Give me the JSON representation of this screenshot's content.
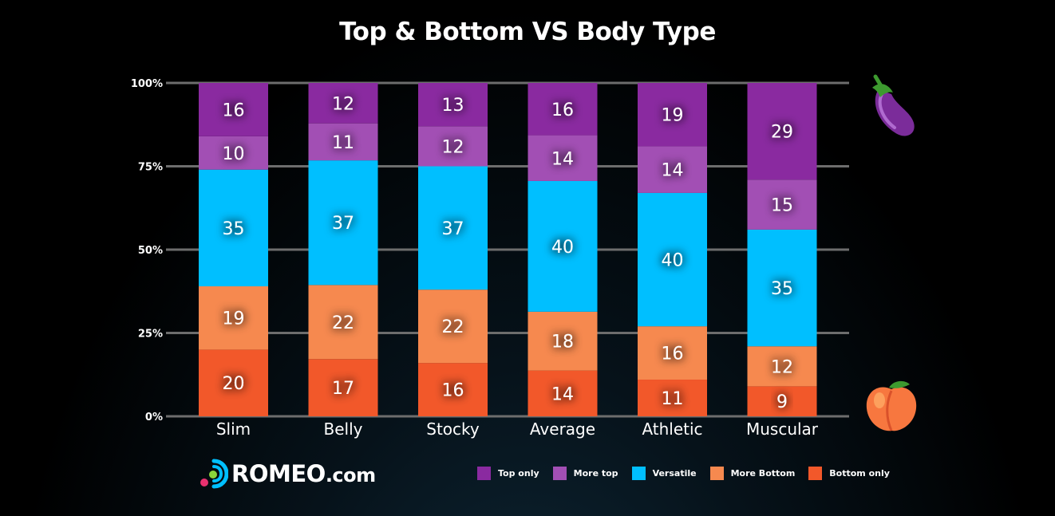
{
  "title": "Top & Bottom VS Body Type",
  "logo": {
    "name": "ROMEO",
    "suffix": ".com"
  },
  "colors": {
    "top_only": "#8a2aa0",
    "more_top": "#a24fb4",
    "versatile": "#00bfff",
    "more_bottom": "#f6894f",
    "bottom_only": "#f2582a",
    "gridline": "#6d6d6d",
    "background": "#000000"
  },
  "icons": {
    "top_marker": "eggplant-icon",
    "bottom_marker": "peach-icon"
  },
  "chart_data": {
    "type": "bar",
    "stacked": true,
    "normalized_percent": true,
    "title": "Top & Bottom VS Body Type",
    "categories": [
      "Slim",
      "Belly",
      "Stocky",
      "Average",
      "Athletic",
      "Muscular"
    ],
    "y_ticks": [
      "100%",
      "75%",
      "50%",
      "25%",
      "0%"
    ],
    "ylim": [
      0,
      100
    ],
    "grid": true,
    "legend_position": "bottom",
    "series": [
      {
        "name": "Bottom only",
        "color": "#f2582a",
        "values": [
          20,
          17,
          16,
          14,
          11,
          9
        ]
      },
      {
        "name": "More Bottom",
        "color": "#f6894f",
        "values": [
          19,
          22,
          22,
          18,
          16,
          12
        ]
      },
      {
        "name": "Versatile",
        "color": "#00bfff",
        "values": [
          35,
          37,
          37,
          40,
          40,
          35
        ]
      },
      {
        "name": "More top",
        "color": "#a24fb4",
        "values": [
          10,
          11,
          12,
          14,
          14,
          15
        ]
      },
      {
        "name": "Top only",
        "color": "#8a2aa0",
        "values": [
          16,
          12,
          13,
          16,
          19,
          29
        ]
      }
    ]
  },
  "legend": [
    {
      "label": "Top only",
      "color": "#8a2aa0"
    },
    {
      "label": "More top",
      "color": "#a24fb4"
    },
    {
      "label": "Versatile",
      "color": "#00bfff"
    },
    {
      "label": "More Bottom",
      "color": "#f6894f"
    },
    {
      "label": "Bottom only",
      "color": "#f2582a"
    }
  ]
}
